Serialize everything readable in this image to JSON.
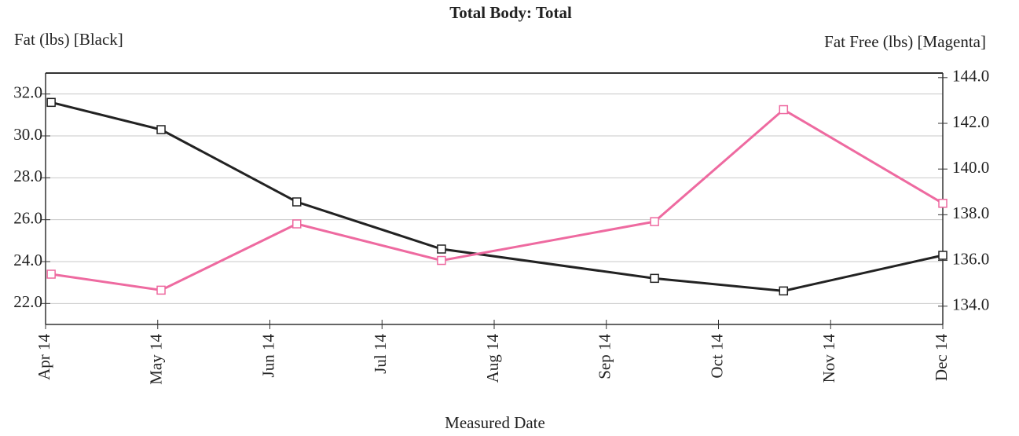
{
  "chart_data": {
    "type": "line",
    "title": "Total Body: Total",
    "y_label": "Fat (lbs) [Black]",
    "y2_label": "Fat Free (lbs) [Magenta]",
    "x_label": "Measured Date",
    "x": [
      0.05,
      1.03,
      2.24,
      3.53,
      5.43,
      6.58,
      8
    ],
    "xlim": [
      0,
      8
    ],
    "xticks": [
      {
        "value": 0,
        "label": "Apr 14"
      },
      {
        "value": 1,
        "label": "May 14"
      },
      {
        "value": 2,
        "label": "Jun 14"
      },
      {
        "value": 3,
        "label": "Jul 14"
      },
      {
        "value": 4,
        "label": "Aug 14"
      },
      {
        "value": 5,
        "label": "Sep 14"
      },
      {
        "value": 6,
        "label": "Oct 14"
      },
      {
        "value": 7,
        "label": "Nov 14"
      },
      {
        "value": 8,
        "label": "Dec 14"
      }
    ],
    "ylim": [
      21,
      33
    ],
    "yticks": [
      {
        "value": 22,
        "label": "22.0"
      },
      {
        "value": 24,
        "label": "24.0"
      },
      {
        "value": 26,
        "label": "26.0"
      },
      {
        "value": 28,
        "label": "28.0"
      },
      {
        "value": 30,
        "label": "30.0"
      },
      {
        "value": 32,
        "label": "32.0"
      }
    ],
    "y2lim": [
      133.2,
      144.2
    ],
    "y2ticks": [
      {
        "value": 134,
        "label": "134.0"
      },
      {
        "value": 136,
        "label": "136.0"
      },
      {
        "value": 138,
        "label": "138.0"
      },
      {
        "value": 140,
        "label": "140.0"
      },
      {
        "value": 142,
        "label": "142.0"
      },
      {
        "value": 144,
        "label": "144.0"
      }
    ],
    "grid": true,
    "series": [
      {
        "name": "Fat (lbs)",
        "color": "#222222",
        "values": [
          31.6,
          30.3,
          26.85,
          24.6,
          23.2,
          22.6,
          24.3
        ]
      },
      {
        "name": "Fat Free (lbs)",
        "color": "#ee6aa0",
        "axis": "y2",
        "values": [
          135.4,
          134.7,
          137.6,
          136.0,
          137.7,
          142.6,
          138.5
        ]
      }
    ]
  }
}
